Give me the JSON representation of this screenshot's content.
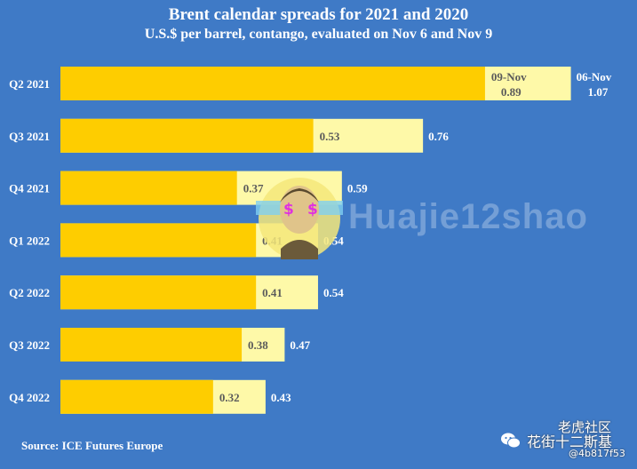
{
  "header": {
    "title": "Brent calendar spreads for 2021 and 2020",
    "subtitle": "U.S.$ per barrel, contango, evaluated on Nov 6 and Nov 9"
  },
  "footer": {
    "source": "Source: ICE Futures Europe"
  },
  "watermark": {
    "text": "Huajie12shao",
    "tiger_label": "老虎社区",
    "cn_label": "花街十二斯基",
    "id_label": "@4b817f53"
  },
  "colors": {
    "background": "#3f7ac6",
    "nov9_bar": "#fecd00",
    "nov6_bar": "#fef9a8",
    "value_label": "#5b5b5b",
    "outside_label": "#ffffff"
  },
  "chart_data": {
    "type": "bar",
    "orientation": "horizontal",
    "title": "Brent calendar spreads for 2021 and 2020",
    "subtitle": "U.S.$ per barrel, contango, evaluated on Nov 6 and Nov 9",
    "categories": [
      "Q2 2021",
      "Q3 2021",
      "Q4 2021",
      "Q1 2022",
      "Q2 2022",
      "Q3 2022",
      "Q4 2022"
    ],
    "series": [
      {
        "name": "09-Nov",
        "values": [
          0.89,
          0.53,
          0.37,
          0.41,
          0.41,
          0.38,
          0.32
        ]
      },
      {
        "name": "06-Nov",
        "values": [
          1.07,
          0.76,
          0.59,
          0.54,
          0.54,
          0.47,
          0.43
        ]
      }
    ],
    "value_labels": [
      [
        "0.89",
        "0.53",
        "0.37",
        "0.41",
        "0.41",
        "0.38",
        "0.32"
      ],
      [
        "1.07",
        "0.76",
        "0.59",
        "0.54",
        "0.54",
        "0.47",
        "0.43"
      ]
    ],
    "xlim": [
      0,
      1.07
    ],
    "grid": false,
    "source": "Source: ICE Futures Europe"
  }
}
